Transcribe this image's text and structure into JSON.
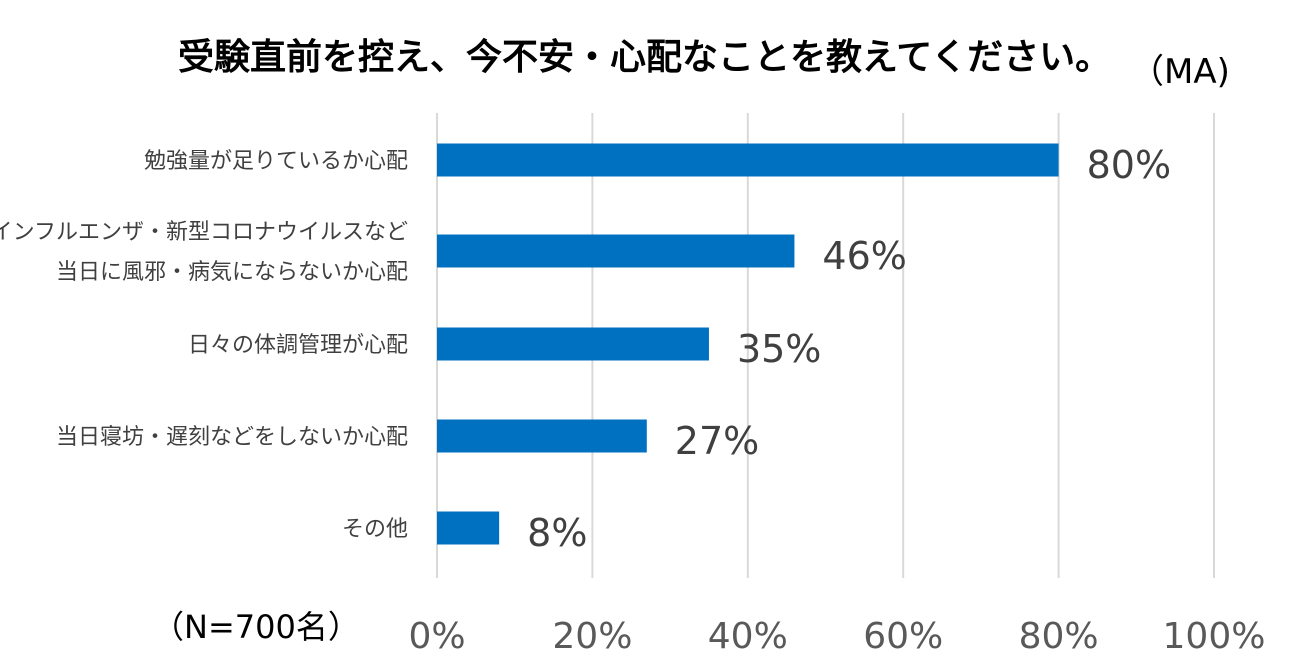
{
  "chart_data": {
    "type": "bar",
    "orientation": "horizontal",
    "title": "受験直前を控え、今不安・心配なことを教えてください。",
    "title_note": "（MA)",
    "sample_note": "（N=700名）",
    "categories": [
      [
        "勉強量が足りているか心配"
      ],
      [
        "インフルエンザ・新型コロナウイルスなど",
        "当日に風邪・病気にならないか心配"
      ],
      [
        "日々の体調管理が心配"
      ],
      [
        "当日寝坊・遅刻などをしないか心配"
      ],
      [
        "その他"
      ]
    ],
    "values": [
      80,
      46,
      35,
      27,
      8
    ],
    "value_labels": [
      "80%",
      "46%",
      "35%",
      "27%",
      "8%"
    ],
    "xlim": [
      0,
      100
    ],
    "x_ticks": [
      0,
      20,
      40,
      60,
      80,
      100
    ],
    "x_tick_labels": [
      "0%",
      "20%",
      "40%",
      "60%",
      "80%",
      "100%"
    ],
    "grid": true,
    "bar_color": "#0070C0",
    "grid_color": "#D9D9D9"
  }
}
